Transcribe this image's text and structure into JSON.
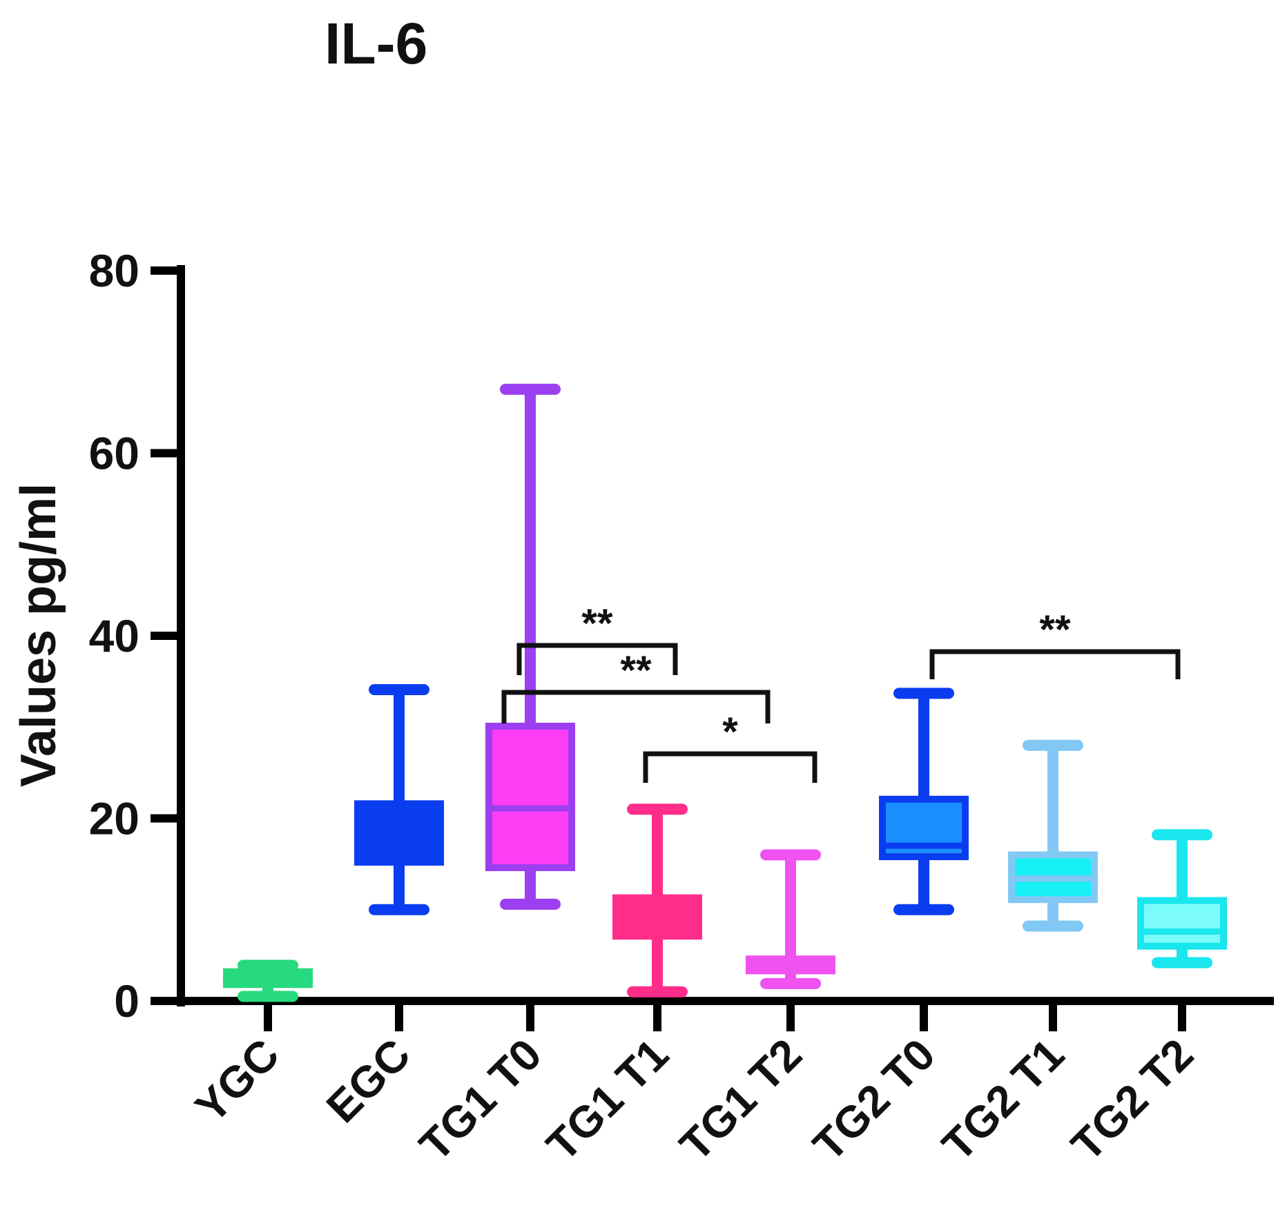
{
  "chart_data": {
    "type": "box",
    "title": "IL-6",
    "ylabel": "Values pg/ml",
    "xlabel": "",
    "ylim": [
      0,
      80
    ],
    "yticks": [
      0,
      20,
      40,
      60,
      80
    ],
    "grid": false,
    "categories": [
      "YGC",
      "EGC",
      "TG1 T0",
      "TG1 T1",
      "TG1 T2",
      "TG2 T0",
      "TG2 T1",
      "TG2 T2"
    ],
    "boxes": [
      {
        "label": "YGC",
        "min": 0.5,
        "q1": 1.8,
        "median": 2.6,
        "q3": 3.2,
        "max": 3.9,
        "fill": "#2ee08a",
        "line": "#27d97f"
      },
      {
        "label": "EGC",
        "min": 10.0,
        "q1": 15.2,
        "median": 18.5,
        "q3": 21.6,
        "max": 34.1,
        "fill": "#0a3df0",
        "line": "#0a3df0"
      },
      {
        "label": "TG1 T0",
        "min": 10.6,
        "q1": 14.6,
        "median": 21.1,
        "q3": 30.1,
        "max": 67.0,
        "fill": "#ff3df5",
        "line": "#9b3ff0"
      },
      {
        "label": "TG1 T1",
        "min": 1.0,
        "q1": 7.1,
        "median": 9.0,
        "q3": 11.3,
        "max": 21.0,
        "fill": "#ff2d8a",
        "line": "#ff2d8a"
      },
      {
        "label": "TG1 T2",
        "min": 1.9,
        "q1": 3.3,
        "median": 4.0,
        "q3": 4.6,
        "max": 16.0,
        "fill": "#f052f0",
        "line": "#f052f0"
      },
      {
        "label": "TG2 T0",
        "min": 10.0,
        "q1": 15.8,
        "median": 17.0,
        "q3": 22.1,
        "max": 33.7,
        "fill": "#1a90ff",
        "line": "#0a3df0"
      },
      {
        "label": "TG2 T1",
        "min": 8.2,
        "q1": 11.1,
        "median": 13.4,
        "q3": 16.0,
        "max": 28.0,
        "fill": "#17f0f5",
        "line": "#82c8f4"
      },
      {
        "label": "TG2 T2",
        "min": 4.2,
        "q1": 6.0,
        "median": 7.6,
        "q3": 11.0,
        "max": 18.2,
        "fill": "#7cfbfb",
        "line": "#1ae6ee"
      }
    ],
    "significance": [
      {
        "from": "TG1 T0",
        "to": "TG1 T1",
        "label": "**"
      },
      {
        "from": "TG1 T0",
        "to": "TG1 T2",
        "label": "**"
      },
      {
        "from": "TG1 T1",
        "to": "TG1 T2",
        "label": "*"
      },
      {
        "from": "TG2 T0",
        "to": "TG2 T2",
        "label": "**"
      }
    ]
  }
}
